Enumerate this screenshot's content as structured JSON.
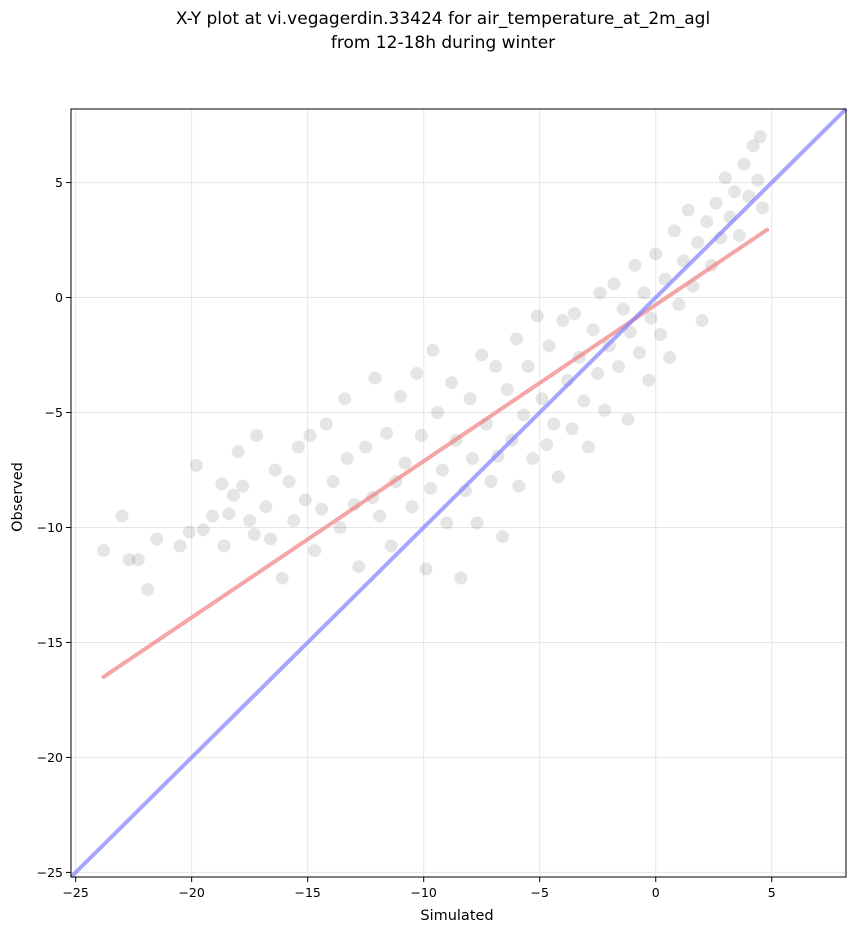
{
  "chart_data": {
    "type": "scatter",
    "title_line1": "X-Y plot at vi.vegagerdin.33424 for air_temperature_at_2m_agl",
    "title_line2": "from 12-18h during winter",
    "xlabel": "Simulated",
    "ylabel": "Observed",
    "xlim": [
      -25.2,
      8.2
    ],
    "ylim": [
      -25.2,
      8.2
    ],
    "xticks": [
      -25,
      -20,
      -15,
      -10,
      -5,
      0,
      5
    ],
    "xtick_labels": [
      "−25",
      "−20",
      "−15",
      "−10",
      "−5",
      "0",
      "5"
    ],
    "yticks": [
      -25,
      -20,
      -15,
      -10,
      -5,
      0,
      5
    ],
    "ytick_labels": [
      "−25",
      "−20",
      "−15",
      "−10",
      "−5",
      "0",
      "5"
    ],
    "grid": true,
    "colors": {
      "points": "#000000",
      "fit_line": "#f08080",
      "identity_line": "#8080ff"
    },
    "fit_line": {
      "x": [
        -23.8,
        4.8
      ],
      "y": [
        -16.5,
        2.95
      ]
    },
    "identity_line": {
      "x": [
        -25.2,
        8.2
      ],
      "y": [
        -25.2,
        8.2
      ]
    },
    "points": [
      [
        -23.8,
        -11.0
      ],
      [
        -23.0,
        -9.5
      ],
      [
        -22.7,
        -11.4
      ],
      [
        -22.3,
        -11.4
      ],
      [
        -21.9,
        -12.7
      ],
      [
        -21.5,
        -10.5
      ],
      [
        -20.5,
        -10.8
      ],
      [
        -20.1,
        -10.2
      ],
      [
        -19.8,
        -7.3
      ],
      [
        -19.5,
        -10.1
      ],
      [
        -19.1,
        -9.5
      ],
      [
        -18.7,
        -8.1
      ],
      [
        -18.6,
        -10.8
      ],
      [
        -18.4,
        -9.4
      ],
      [
        -18.2,
        -8.6
      ],
      [
        -18.0,
        -6.7
      ],
      [
        -17.8,
        -8.2
      ],
      [
        -17.5,
        -9.7
      ],
      [
        -17.3,
        -10.3
      ],
      [
        -17.2,
        -6.0
      ],
      [
        -16.8,
        -9.1
      ],
      [
        -16.6,
        -10.5
      ],
      [
        -16.4,
        -7.5
      ],
      [
        -16.1,
        -12.2
      ],
      [
        -15.8,
        -8.0
      ],
      [
        -15.6,
        -9.7
      ],
      [
        -15.4,
        -6.5
      ],
      [
        -15.1,
        -8.8
      ],
      [
        -14.9,
        -6.0
      ],
      [
        -14.7,
        -11.0
      ],
      [
        -14.4,
        -9.2
      ],
      [
        -14.2,
        -5.5
      ],
      [
        -13.9,
        -8.0
      ],
      [
        -13.6,
        -10.0
      ],
      [
        -13.4,
        -4.4
      ],
      [
        -13.3,
        -7.0
      ],
      [
        -13.0,
        -9.0
      ],
      [
        -12.8,
        -11.7
      ],
      [
        -12.5,
        -6.5
      ],
      [
        -12.2,
        -8.7
      ],
      [
        -12.1,
        -3.5
      ],
      [
        -11.9,
        -9.5
      ],
      [
        -11.6,
        -5.9
      ],
      [
        -11.4,
        -10.8
      ],
      [
        -11.2,
        -8.0
      ],
      [
        -11.0,
        -4.3
      ],
      [
        -10.8,
        -7.2
      ],
      [
        -10.5,
        -9.1
      ],
      [
        -10.3,
        -3.3
      ],
      [
        -10.1,
        -6.0
      ],
      [
        -9.9,
        -11.8
      ],
      [
        -9.7,
        -8.3
      ],
      [
        -9.6,
        -2.3
      ],
      [
        -9.4,
        -5.0
      ],
      [
        -9.2,
        -7.5
      ],
      [
        -9.0,
        -9.8
      ],
      [
        -8.8,
        -3.7
      ],
      [
        -8.6,
        -6.2
      ],
      [
        -8.4,
        -12.2
      ],
      [
        -8.2,
        -8.4
      ],
      [
        -8.0,
        -4.4
      ],
      [
        -7.9,
        -7.0
      ],
      [
        -7.7,
        -9.8
      ],
      [
        -7.5,
        -2.5
      ],
      [
        -7.3,
        -5.5
      ],
      [
        -7.1,
        -8.0
      ],
      [
        -6.9,
        -3.0
      ],
      [
        -6.8,
        -6.9
      ],
      [
        -6.6,
        -10.4
      ],
      [
        -6.4,
        -4.0
      ],
      [
        -6.2,
        -6.2
      ],
      [
        -6.0,
        -1.8
      ],
      [
        -5.9,
        -8.2
      ],
      [
        -5.7,
        -5.1
      ],
      [
        -5.5,
        -3.0
      ],
      [
        -5.3,
        -7.0
      ],
      [
        -5.1,
        -0.8
      ],
      [
        -4.9,
        -4.4
      ],
      [
        -4.7,
        -6.4
      ],
      [
        -4.6,
        -2.1
      ],
      [
        -4.4,
        -5.5
      ],
      [
        -4.2,
        -7.8
      ],
      [
        -4.0,
        -1.0
      ],
      [
        -3.8,
        -3.6
      ],
      [
        -3.6,
        -5.7
      ],
      [
        -3.5,
        -0.7
      ],
      [
        -3.3,
        -2.6
      ],
      [
        -3.1,
        -4.5
      ],
      [
        -2.9,
        -6.5
      ],
      [
        -2.7,
        -1.4
      ],
      [
        -2.5,
        -3.3
      ],
      [
        -2.4,
        0.2
      ],
      [
        -2.2,
        -4.9
      ],
      [
        -2.0,
        -2.1
      ],
      [
        -1.8,
        0.6
      ],
      [
        -1.6,
        -3.0
      ],
      [
        -1.4,
        -0.5
      ],
      [
        -1.2,
        -5.3
      ],
      [
        -1.1,
        -1.5
      ],
      [
        -0.9,
        1.4
      ],
      [
        -0.7,
        -2.4
      ],
      [
        -0.5,
        0.2
      ],
      [
        -0.3,
        -3.6
      ],
      [
        -0.2,
        -0.9
      ],
      [
        0.0,
        1.9
      ],
      [
        0.2,
        -1.6
      ],
      [
        0.4,
        0.8
      ],
      [
        0.6,
        -2.6
      ],
      [
        0.8,
        2.9
      ],
      [
        1.0,
        -0.3
      ],
      [
        1.2,
        1.6
      ],
      [
        1.4,
        3.8
      ],
      [
        1.6,
        0.5
      ],
      [
        1.8,
        2.4
      ],
      [
        2.0,
        -1.0
      ],
      [
        2.2,
        3.3
      ],
      [
        2.4,
        1.4
      ],
      [
        2.6,
        4.1
      ],
      [
        2.8,
        2.6
      ],
      [
        3.0,
        5.2
      ],
      [
        3.2,
        3.5
      ],
      [
        3.4,
        4.6
      ],
      [
        3.6,
        2.7
      ],
      [
        3.8,
        5.8
      ],
      [
        4.0,
        4.4
      ],
      [
        4.2,
        6.6
      ],
      [
        4.4,
        5.1
      ],
      [
        4.5,
        7.0
      ],
      [
        4.6,
        3.9
      ]
    ]
  }
}
